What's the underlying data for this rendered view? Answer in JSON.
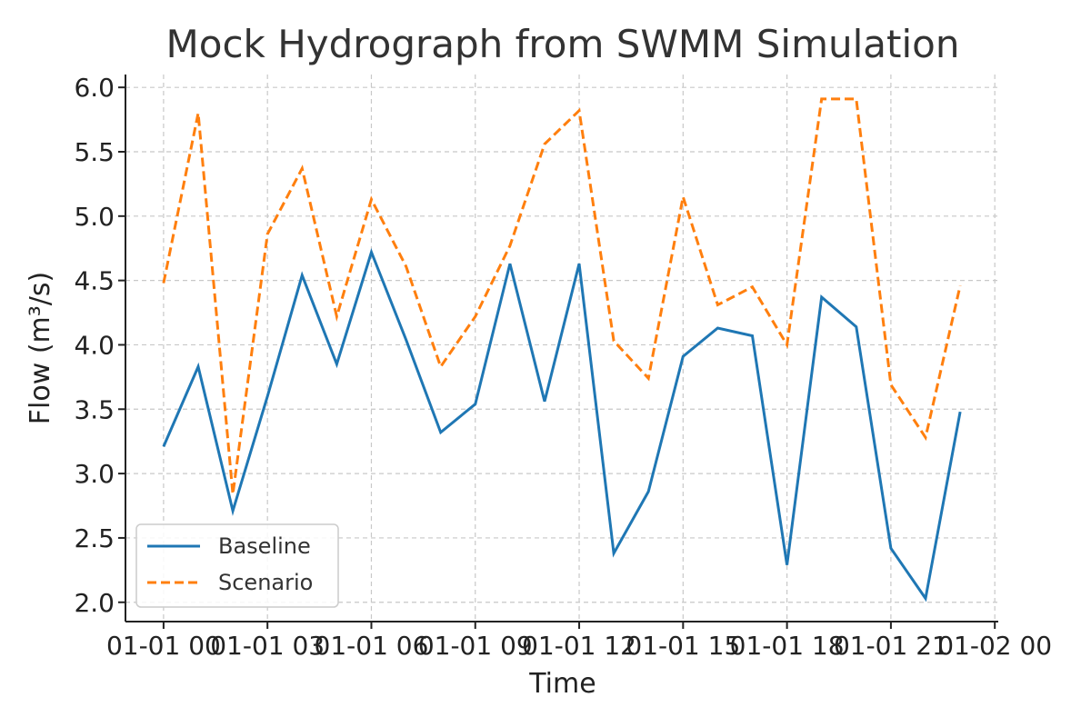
{
  "chart_data": {
    "type": "line",
    "title": "Mock Hydrograph from SWMM Simulation",
    "xlabel": "Time",
    "ylabel": "Flow (m³/s)",
    "x_ticks": [
      "01-01 00",
      "01-01 03",
      "01-01 06",
      "01-01 09",
      "01-01 12",
      "01-01 15",
      "01-01 18",
      "01-01 21",
      "01-02 00"
    ],
    "x_tick_hours": [
      0,
      3,
      6,
      9,
      12,
      15,
      18,
      21,
      24
    ],
    "xlim_hours": [
      -1.1,
      24.1
    ],
    "x_hours": [
      0,
      1,
      2,
      3,
      4,
      5,
      6,
      7,
      8,
      9,
      10,
      11,
      12,
      13,
      14,
      15,
      16,
      17,
      18,
      19,
      20,
      21,
      22,
      23
    ],
    "y_ticks": [
      "2.0",
      "2.5",
      "3.0",
      "3.5",
      "4.0",
      "4.5",
      "5.0",
      "5.5",
      "6.0"
    ],
    "ylim": [
      1.85,
      6.1
    ],
    "grid": true,
    "legend_position": "lower-left",
    "series": [
      {
        "name": "Baseline",
        "color": "#1f77b4",
        "style": "solid",
        "values": [
          3.21,
          3.83,
          2.71,
          3.6,
          4.54,
          3.85,
          4.72,
          4.04,
          3.32,
          3.54,
          4.63,
          3.56,
          4.63,
          2.38,
          2.86,
          3.91,
          4.13,
          4.07,
          2.29,
          4.37,
          4.14,
          2.42,
          2.03,
          3.48
        ]
      },
      {
        "name": "Scenario",
        "color": "#ff7f0e",
        "style": "dashed",
        "values": [
          4.48,
          5.8,
          2.84,
          4.86,
          5.37,
          4.22,
          5.13,
          4.61,
          3.83,
          4.22,
          4.77,
          5.56,
          5.82,
          4.03,
          3.74,
          5.15,
          4.31,
          4.45,
          4.0,
          5.91,
          5.91,
          3.69,
          3.28,
          4.46
        ]
      }
    ]
  }
}
